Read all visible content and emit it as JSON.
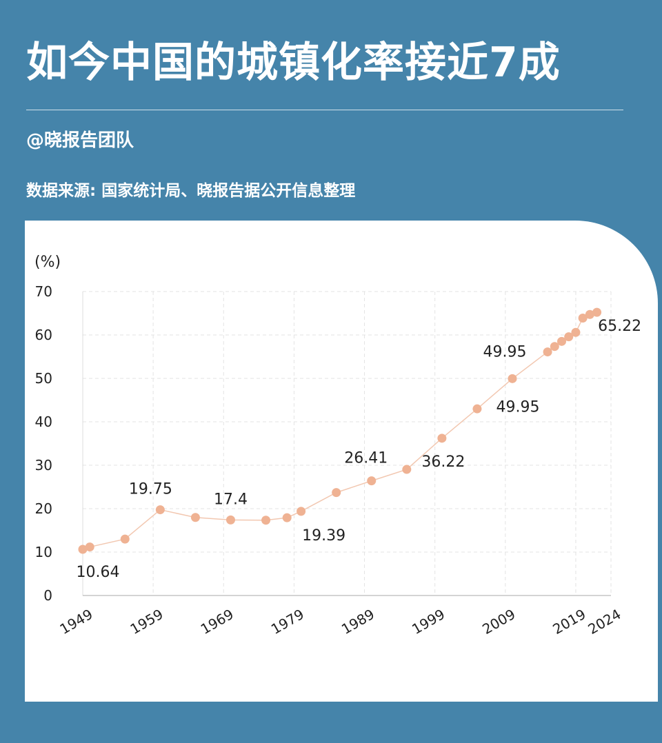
{
  "header": {
    "title": "如今中国的城镇化率接近7成",
    "author": "@晓报告团队",
    "source": "数据来源: 国家统计局、晓报告据公开信息整理"
  },
  "colors": {
    "background": "#4584aa",
    "card": "#ffffff",
    "point": "#efb293",
    "line": "#f2c7b0",
    "grid": "#e3e3e3"
  },
  "chart_data": {
    "type": "line",
    "unit_label": "(%)",
    "ylim": [
      0,
      70
    ],
    "yticks": [
      0,
      10,
      20,
      30,
      40,
      50,
      60,
      70
    ],
    "xlim": [
      1949,
      2024
    ],
    "xticks": [
      "1949",
      "1959",
      "1969",
      "1979",
      "1989",
      "1999",
      "2009",
      "2019",
      "2024"
    ],
    "grid": true,
    "series": [
      {
        "points": [
          {
            "x": 1949,
            "y": 10.64
          },
          {
            "x": 1950,
            "y": 11.18
          },
          {
            "x": 1955,
            "y": 13.0
          },
          {
            "x": 1960,
            "y": 19.75
          },
          {
            "x": 1965,
            "y": 17.98
          },
          {
            "x": 1970,
            "y": 17.4
          },
          {
            "x": 1975,
            "y": 17.34
          },
          {
            "x": 1978,
            "y": 17.92
          },
          {
            "x": 1980,
            "y": 19.39
          },
          {
            "x": 1985,
            "y": 23.71
          },
          {
            "x": 1990,
            "y": 26.41
          },
          {
            "x": 1995,
            "y": 29.04
          },
          {
            "x": 2000,
            "y": 36.22
          },
          {
            "x": 2005,
            "y": 42.99
          },
          {
            "x": 2010,
            "y": 49.95
          },
          {
            "x": 2015,
            "y": 56.1
          },
          {
            "x": 2016,
            "y": 57.35
          },
          {
            "x": 2017,
            "y": 58.52
          },
          {
            "x": 2018,
            "y": 59.58
          },
          {
            "x": 2019,
            "y": 60.6
          },
          {
            "x": 2020,
            "y": 63.89
          },
          {
            "x": 2021,
            "y": 64.72
          },
          {
            "x": 2022,
            "y": 65.22
          }
        ]
      }
    ],
    "annotations": [
      {
        "text": "10.64",
        "x": 1949,
        "y": 10.64
      },
      {
        "text": "19.75",
        "x": 1960,
        "y": 19.75
      },
      {
        "text": "17.4",
        "x": 1970,
        "y": 17.4
      },
      {
        "text": "19.39",
        "x": 1980,
        "y": 19.39
      },
      {
        "text": "26.41",
        "x": 1990,
        "y": 26.41
      },
      {
        "text": "36.22",
        "x": 2000,
        "y": 36.22
      },
      {
        "text": "49.95",
        "x": 2010,
        "y": 49.95
      },
      {
        "text": "49.95",
        "x": 2010,
        "y": 49.95
      },
      {
        "text": "65.22",
        "x": 2022,
        "y": 65.22
      }
    ]
  }
}
